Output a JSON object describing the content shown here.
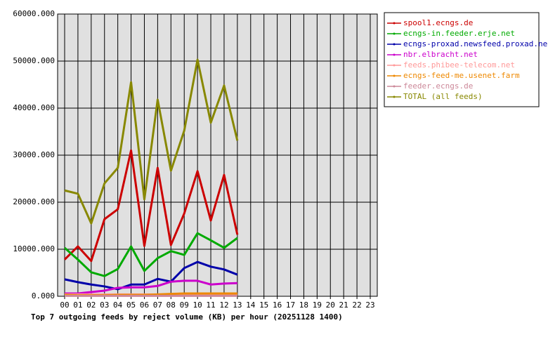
{
  "chart_data": {
    "type": "line",
    "title": "Top 7 outgoing feeds by reject volume (KB) per hour (20251128 1400)",
    "categories": [
      "00",
      "01",
      "02",
      "03",
      "04",
      "05",
      "06",
      "07",
      "08",
      "09",
      "10",
      "11",
      "12",
      "13",
      "14",
      "15",
      "16",
      "17",
      "18",
      "19",
      "20",
      "21",
      "22",
      "23"
    ],
    "ylim": [
      0,
      60000
    ],
    "yticks": [
      {
        "value": 0,
        "label": "0.000"
      },
      {
        "value": 10000,
        "label": "10000.000"
      },
      {
        "value": 20000,
        "label": "20000.000"
      },
      {
        "value": 30000,
        "label": "30000.000"
      },
      {
        "value": 40000,
        "label": "40000.000"
      },
      {
        "value": 50000,
        "label": "50000.000"
      },
      {
        "value": 60000,
        "label": "60000.000"
      }
    ],
    "grid": true,
    "legend": "right",
    "series": [
      {
        "name": "spool1.ecngs.de",
        "color": "#cc0000",
        "values": [
          7800,
          10600,
          7500,
          16400,
          18500,
          31000,
          10700,
          27300,
          10900,
          17600,
          26600,
          16100,
          25800,
          13100,
          null,
          null,
          null,
          null,
          null,
          null,
          null,
          null,
          null,
          null
        ]
      },
      {
        "name": "ecngs-in.feeder.erje.net",
        "color": "#00aa00",
        "values": [
          10300,
          7800,
          5100,
          4300,
          5800,
          10600,
          5400,
          8100,
          9600,
          8800,
          13400,
          11900,
          10300,
          12400,
          null,
          null,
          null,
          null,
          null,
          null,
          null,
          null,
          null,
          null
        ]
      },
      {
        "name": "ecngs-proxad.newsfeed.proxad.net",
        "color": "#0000aa",
        "values": [
          3600,
          3000,
          2500,
          2100,
          1500,
          2500,
          2500,
          3700,
          3100,
          6000,
          7300,
          6300,
          5700,
          4600,
          null,
          null,
          null,
          null,
          null,
          null,
          null,
          null,
          null,
          null
        ]
      },
      {
        "name": "nbr.elbracht.net",
        "color": "#cc00cc",
        "values": [
          600,
          600,
          900,
          1200,
          1800,
          1900,
          1900,
          2200,
          3100,
          3300,
          3300,
          2500,
          2700,
          2800,
          null,
          null,
          null,
          null,
          null,
          null,
          null,
          null,
          null,
          null
        ]
      },
      {
        "name": "feeds.phibee-telecom.net",
        "color": "#ff9999",
        "values": [
          400,
          400,
          400,
          400,
          400,
          400,
          400,
          400,
          400,
          400,
          400,
          400,
          400,
          400,
          null,
          null,
          null,
          null,
          null,
          null,
          null,
          null,
          null,
          null
        ]
      },
      {
        "name": "ecngs-feed-me.usenet.farm",
        "color": "#ee8800",
        "values": [
          300,
          200,
          200,
          200,
          300,
          300,
          300,
          400,
          500,
          600,
          600,
          600,
          600,
          600,
          null,
          null,
          null,
          null,
          null,
          null,
          null,
          null,
          null,
          null
        ]
      },
      {
        "name": "feeder.ecngs.de",
        "color": "#cc8899",
        "values": [
          100,
          100,
          100,
          100,
          100,
          100,
          100,
          100,
          100,
          100,
          100,
          100,
          100,
          100,
          null,
          null,
          null,
          null,
          null,
          null,
          null,
          null,
          null,
          null
        ]
      },
      {
        "name": "TOTAL (all feeds)",
        "color": "#888800",
        "values": [
          22500,
          21800,
          15500,
          24000,
          27300,
          45500,
          20600,
          41800,
          26700,
          35200,
          50300,
          36900,
          44800,
          33100,
          null,
          null,
          null,
          null,
          null,
          null,
          null,
          null,
          null,
          null
        ]
      }
    ]
  }
}
